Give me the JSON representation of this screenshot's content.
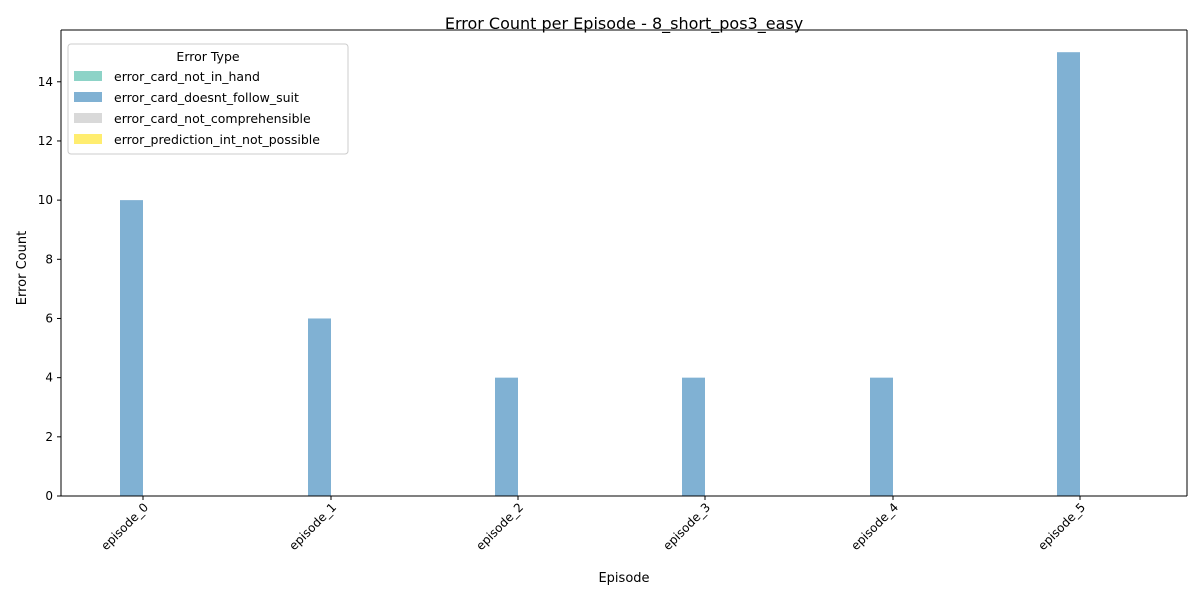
{
  "chart_data": {
    "type": "bar",
    "title": "Error Count per Episode - 8_short_pos3_easy",
    "xlabel": "Episode",
    "ylabel": "Error Count",
    "categories": [
      "episode_0",
      "episode_1",
      "episode_2",
      "episode_3",
      "episode_4",
      "episode_5"
    ],
    "ylim": [
      0,
      15.75
    ],
    "yticks": [
      0,
      2,
      4,
      6,
      8,
      10,
      12,
      14
    ],
    "grid": false,
    "legend": {
      "title": "Error Type",
      "placement": "top-left"
    },
    "series": [
      {
        "name": "error_card_not_in_hand",
        "color": "#8dd3c7",
        "values": [
          0,
          0,
          0,
          0,
          0,
          0
        ]
      },
      {
        "name": "error_card_doesnt_follow_suit",
        "color": "#80b1d3",
        "values": [
          10,
          6,
          4,
          4,
          4,
          15
        ]
      },
      {
        "name": "error_card_not_comprehensible",
        "color": "#d9d9d9",
        "values": [
          0,
          0,
          0,
          0,
          0,
          0
        ]
      },
      {
        "name": "error_prediction_int_not_possible",
        "color": "#ffed6f",
        "values": [
          0,
          0,
          0,
          0,
          0,
          0
        ]
      }
    ]
  }
}
